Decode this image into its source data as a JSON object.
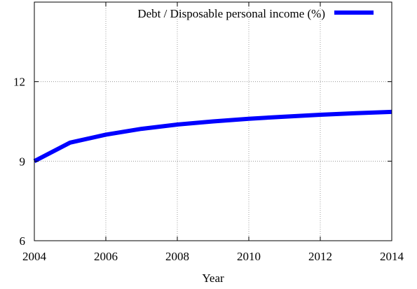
{
  "chart_data": {
    "type": "line",
    "xlabel": "Year",
    "ylabel": "",
    "xlim": [
      2004,
      2014
    ],
    "ylim": [
      6,
      15
    ],
    "x_ticks": [
      2004,
      2006,
      2008,
      2010,
      2012,
      2014
    ],
    "y_ticks": [
      6,
      9,
      12
    ],
    "grid": true,
    "legend_position": "top-right",
    "series": [
      {
        "name": "Debt / Disposable personal income (%)",
        "color": "#0000ff",
        "x": [
          2004,
          2005,
          2006,
          2007,
          2008,
          2009,
          2010,
          2011,
          2012,
          2013,
          2014
        ],
        "y": [
          9.0,
          9.7,
          10.0,
          10.22,
          10.38,
          10.5,
          10.6,
          10.68,
          10.75,
          10.81,
          10.86
        ]
      }
    ]
  }
}
